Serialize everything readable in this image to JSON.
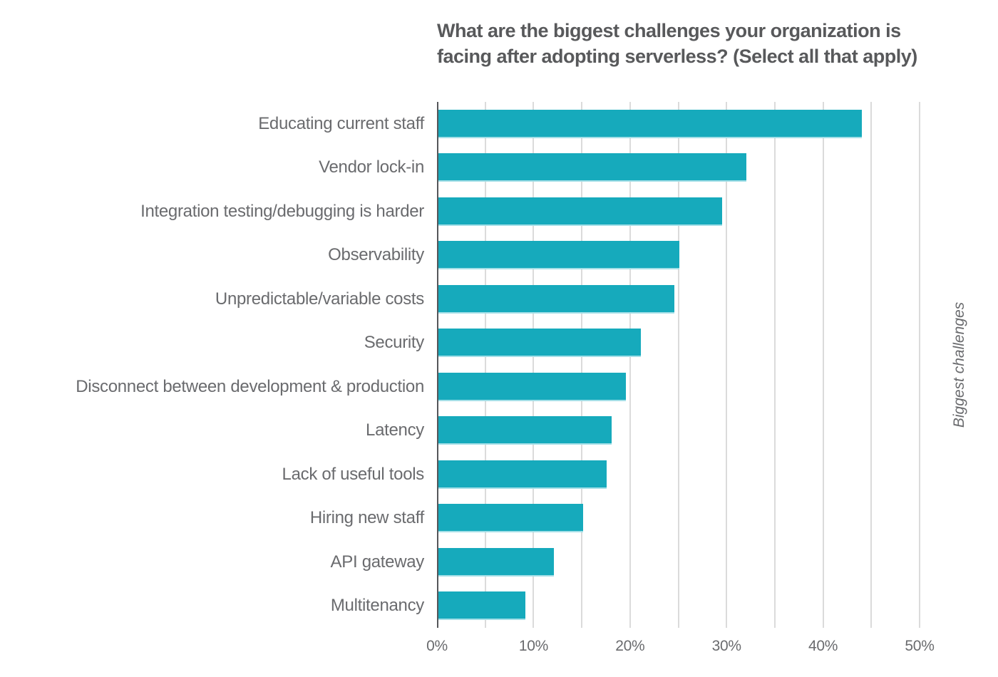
{
  "title": {
    "line1": "What are the biggest challenges your organization is",
    "line2": "facing after adopting serverless? (Select all that apply)"
  },
  "chart_data": {
    "type": "bar",
    "orientation": "horizontal",
    "title": "What are the biggest challenges your organization is facing after adopting serverless? (Select all that apply)",
    "categories": [
      "Educating current staff",
      "Vendor lock-in",
      "Integration testing/debugging is harder",
      "Observability",
      "Unpredictable/variable costs",
      "Security",
      "Disconnect between development & production",
      "Latency",
      "Lack of useful tools",
      "Hiring new staff",
      "API gateway",
      "Multitenancy"
    ],
    "values": [
      44,
      32,
      29.5,
      25,
      24.5,
      21,
      19.5,
      18,
      17.5,
      15,
      12,
      9
    ],
    "value_unit": "%",
    "xlim": [
      0,
      50
    ],
    "gridline_step": 5,
    "x_tick_labels": [
      "0%",
      "10%",
      "20%",
      "30%",
      "40%",
      "50%"
    ],
    "right_axis_label": "Biggest challenges",
    "grid_on": true,
    "legend": "none",
    "bar_color": "#16AABC"
  },
  "colors": {
    "bar": "#16AABC",
    "title_text": "#58595B",
    "label_text": "#6A6B6E",
    "gridline": "#DBDBDB",
    "axis_line": "#55565A",
    "background": "#FFFFFF"
  }
}
